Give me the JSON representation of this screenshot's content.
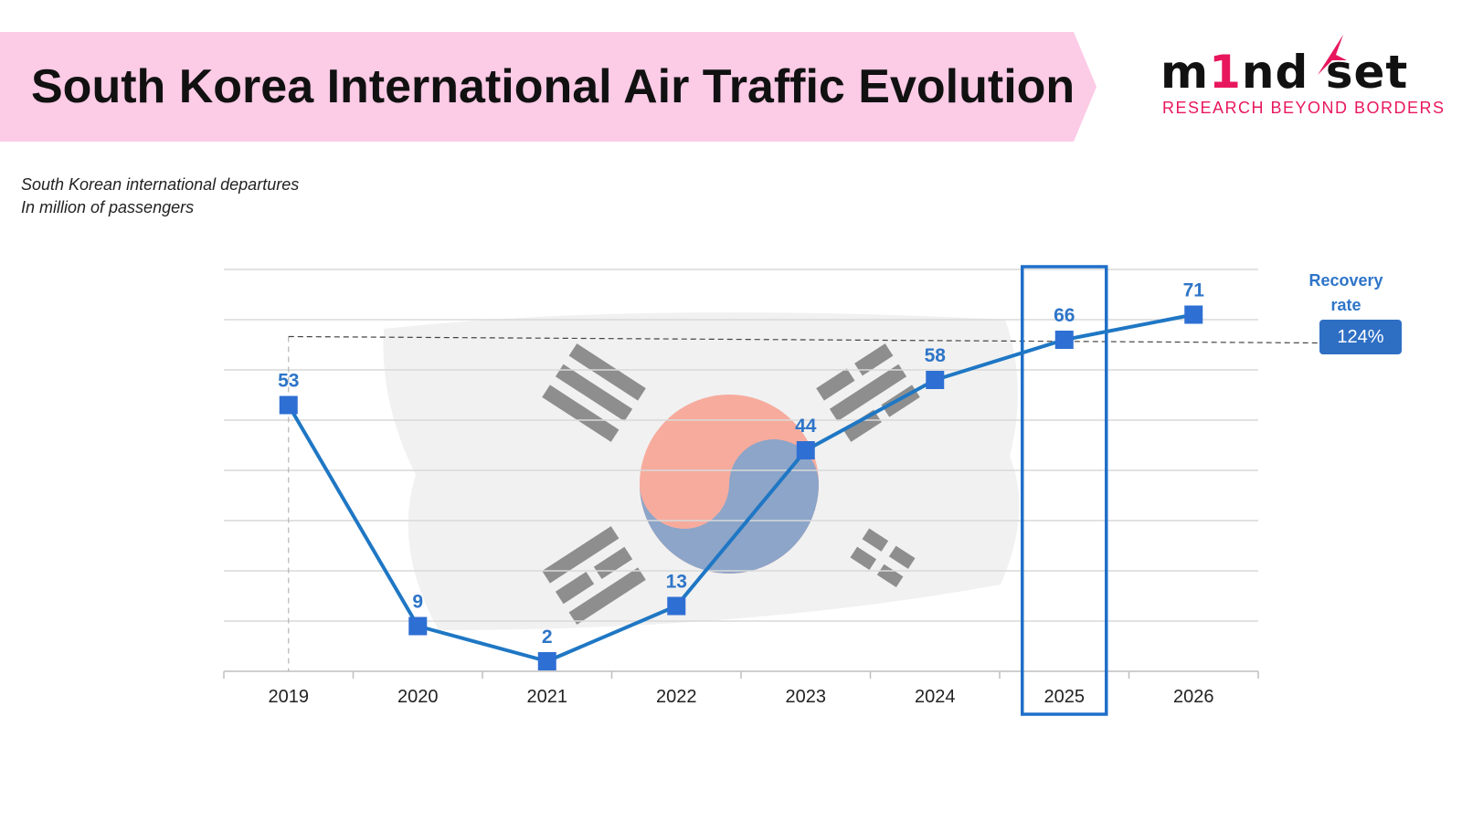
{
  "header": {
    "title": "South Korea International Air Traffic Evolution",
    "banner_color": "#fccbe6"
  },
  "logo": {
    "word_start": "m",
    "word_one": "1",
    "word_end": "nd set",
    "tagline": "RESEARCH BEYOND BORDERS",
    "brand_color": "#e8175d",
    "icon": "bird-icon"
  },
  "subtitle": {
    "line1": "South Korean international departures",
    "line2": "In million of passengers"
  },
  "recovery": {
    "label_line1": "Recovery",
    "label_line2": "rate",
    "value": "124%"
  },
  "chart_data": {
    "type": "line",
    "categories": [
      "2019",
      "2020",
      "2021",
      "2022",
      "2023",
      "2024",
      "2025",
      "2026"
    ],
    "values": [
      53,
      9,
      2,
      13,
      44,
      58,
      66,
      71
    ],
    "data_labels": [
      "53",
      "9",
      "2",
      "13",
      "44",
      "58",
      "66",
      "71"
    ],
    "ylim": [
      0,
      80
    ],
    "grid": true,
    "reference_value": 53,
    "highlighted_category": "2025",
    "line_color": "#1f77c4",
    "marker_color": "#2e6fd4",
    "label_color": "#2e75c8",
    "background_image": "south-korea-flag"
  }
}
